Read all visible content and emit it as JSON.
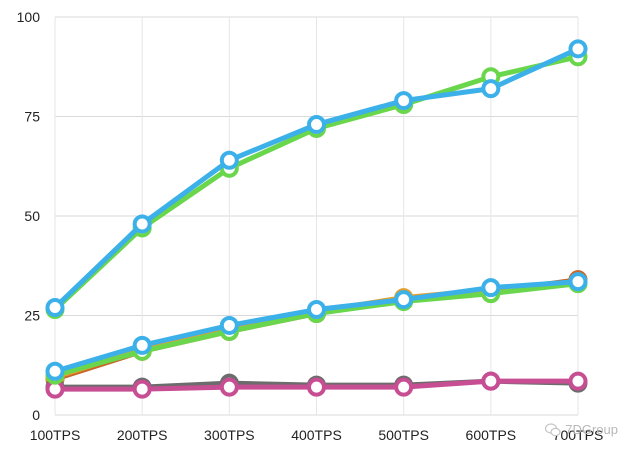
{
  "chart_data": {
    "type": "line",
    "categories": [
      "100TPS",
      "200TPS",
      "300TPS",
      "400TPS",
      "500TPS",
      "600TPS",
      "700TPS"
    ],
    "ylim": [
      0,
      100
    ],
    "yticks": [
      0,
      25,
      50,
      75,
      100
    ],
    "grid": true,
    "series": [
      {
        "color": "#c86428",
        "values": [
          9,
          16,
          21,
          25.5,
          29,
          31,
          34
        ]
      },
      {
        "color": "#e0a030",
        "values": [
          9.5,
          16.5,
          21.5,
          26,
          29.5,
          31.5,
          33.5
        ]
      },
      {
        "color": "#6c6c6c",
        "values": [
          7,
          7,
          8,
          7.5,
          7.5,
          8.5,
          8
        ]
      },
      {
        "color": "#c84e94",
        "values": [
          6.5,
          6.5,
          7,
          7,
          7,
          8.5,
          8.5
        ]
      },
      {
        "color": "#6ad64c",
        "values": [
          10,
          16,
          21,
          25.5,
          28.5,
          30.5,
          33
        ]
      },
      {
        "color": "#3cb0e8",
        "values": [
          11,
          17.5,
          22.5,
          26.5,
          29,
          32,
          33.5
        ]
      },
      {
        "color": "#6ad64c",
        "values": [
          26.5,
          47,
          62,
          72,
          78,
          85,
          90
        ]
      },
      {
        "color": "#3cb0e8",
        "values": [
          27,
          48,
          64,
          73,
          79,
          82,
          92
        ]
      }
    ]
  },
  "watermark": {
    "icon": "wechat-icon",
    "text": "7DGroup"
  }
}
